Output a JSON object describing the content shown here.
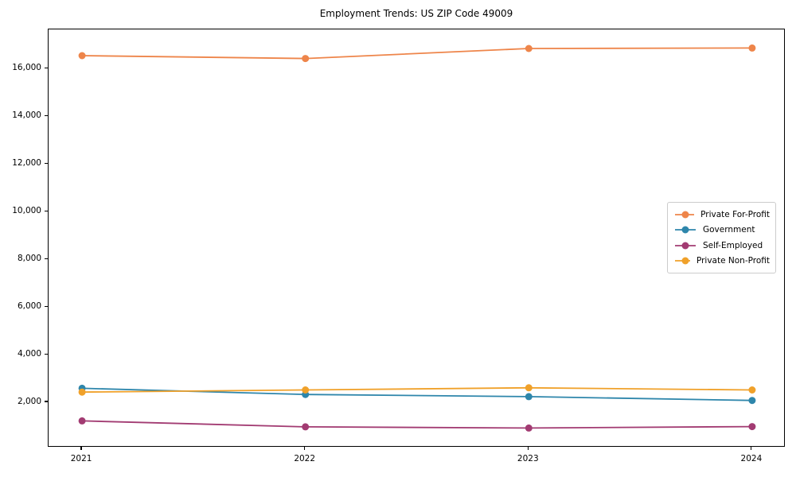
{
  "chart_data": {
    "type": "line",
    "title": "Employment Trends: US ZIP Code 49009",
    "xlabel": "",
    "ylabel": "",
    "x": [
      2021,
      2022,
      2023,
      2024
    ],
    "x_tick_labels": [
      "2021",
      "2022",
      "2023",
      "2024"
    ],
    "y_ticks": [
      2000,
      4000,
      6000,
      8000,
      10000,
      12000,
      14000,
      16000
    ],
    "y_tick_labels": [
      "2,000",
      "4,000",
      "6,000",
      "8,000",
      "10,000",
      "12,000",
      "14,000",
      "16,000"
    ],
    "xlim": [
      2020.85,
      2024.15
    ],
    "ylim": [
      100,
      17650
    ],
    "grid": false,
    "legend_position": "center-right",
    "marker": "circle",
    "series": [
      {
        "name": "Private For-Profit",
        "color": "#EE854A",
        "values": [
          16550,
          16430,
          16850,
          16870
        ]
      },
      {
        "name": "Government",
        "color": "#2E86AB",
        "values": [
          2590,
          2330,
          2240,
          2080
        ]
      },
      {
        "name": "Self-Employed",
        "color": "#A23B72",
        "values": [
          1220,
          970,
          920,
          980
        ]
      },
      {
        "name": "Private Non-Profit",
        "color": "#F0A12A",
        "values": [
          2430,
          2520,
          2610,
          2520
        ]
      }
    ]
  }
}
